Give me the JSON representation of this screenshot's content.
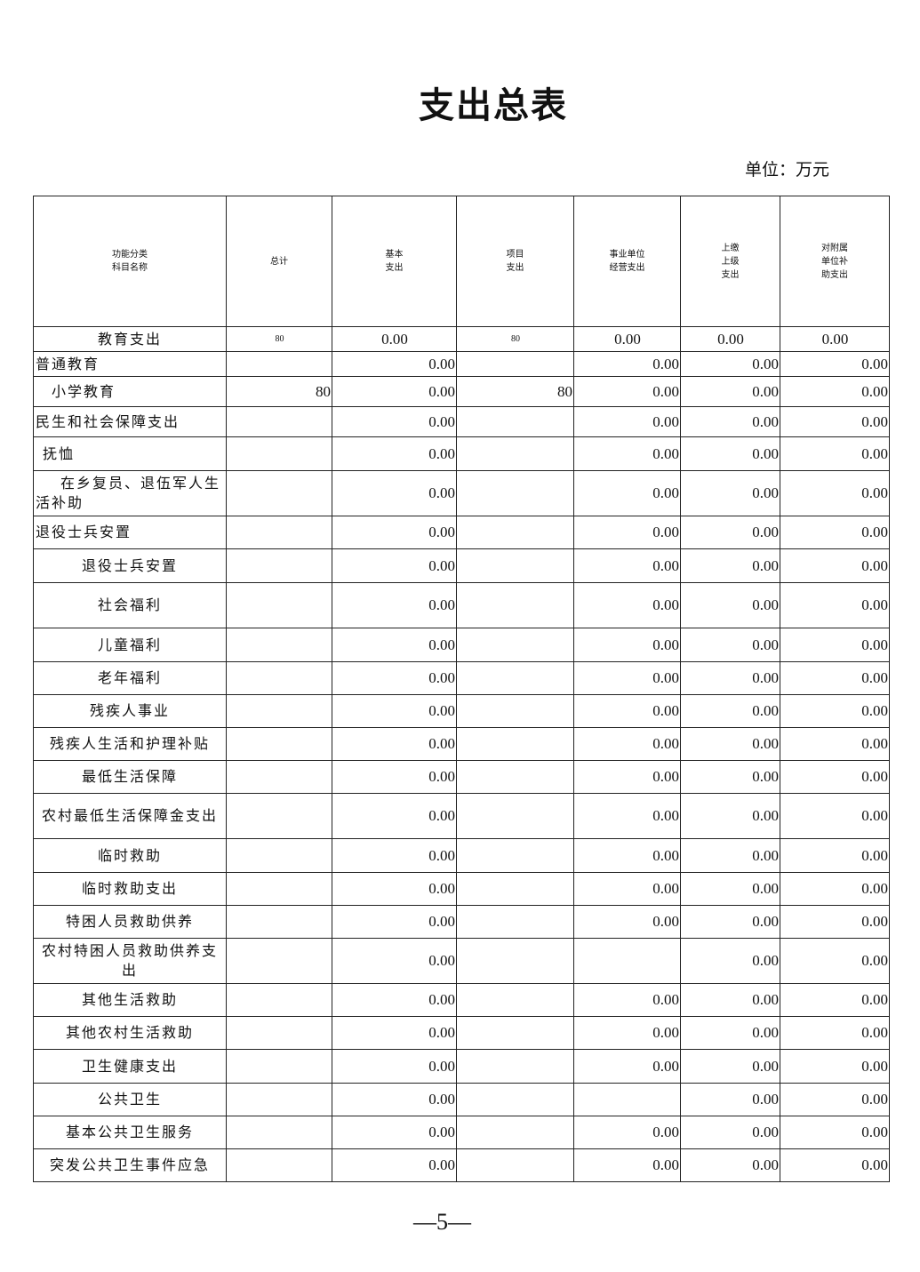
{
  "title": "支出总表",
  "unit": "单位：万元",
  "headers": [
    "功能分类\n科目名称",
    "总计",
    "基本\n支出",
    "项目\n支出",
    "事业单位\n经营支出",
    "上缴\n上级\n支出",
    "对附属\n单位补\n助支出"
  ],
  "rows": [
    {
      "name": "教育支出",
      "align": "center",
      "v": [
        "80",
        "0.00",
        "80",
        "0.00",
        "0.00",
        "0.00"
      ]
    },
    {
      "name": "普通教育",
      "align": "left",
      "v": [
        "",
        "0.00",
        "",
        "0.00",
        "0.00",
        "0.00"
      ]
    },
    {
      "name": "小学教育",
      "align": "indent",
      "v": [
        "80",
        "0.00",
        "80",
        "0.00",
        "0.00",
        "0.00"
      ]
    },
    {
      "name": "民生和社会保障支出",
      "align": "left",
      "v": [
        "",
        "0.00",
        "",
        "0.00",
        "0.00",
        "0.00"
      ]
    },
    {
      "name": "抚恤",
      "align": "indent1",
      "v": [
        "",
        "0.00",
        "",
        "0.00",
        "0.00",
        "0.00"
      ]
    },
    {
      "name": "在乡复员、退伍军人生活补助",
      "align": "wrap",
      "v": [
        "",
        "0.00",
        "",
        "0.00",
        "0.00",
        "0.00"
      ]
    },
    {
      "name": "退役士兵安置",
      "align": "left",
      "v": [
        "",
        "0.00",
        "",
        "0.00",
        "0.00",
        "0.00"
      ]
    },
    {
      "name": "退役士兵安置",
      "align": "center",
      "v": [
        "",
        "0.00",
        "",
        "0.00",
        "0.00",
        "0.00"
      ]
    },
    {
      "name": "社会福利",
      "align": "center",
      "v": [
        "",
        "0.00",
        "",
        "0.00",
        "0.00",
        "0.00"
      ]
    },
    {
      "name": "儿童福利",
      "align": "center",
      "v": [
        "",
        "0.00",
        "",
        "0.00",
        "0.00",
        "0.00"
      ]
    },
    {
      "name": "老年福利",
      "align": "center",
      "v": [
        "",
        "0.00",
        "",
        "0.00",
        "0.00",
        "0.00"
      ]
    },
    {
      "name": "残疾人事业",
      "align": "center",
      "v": [
        "",
        "0.00",
        "",
        "0.00",
        "0.00",
        "0.00"
      ]
    },
    {
      "name": "残疾人生活和护理补贴",
      "align": "center",
      "v": [
        "",
        "0.00",
        "",
        "0.00",
        "0.00",
        "0.00"
      ]
    },
    {
      "name": "最低生活保障",
      "align": "center",
      "v": [
        "",
        "0.00",
        "",
        "0.00",
        "0.00",
        "0.00"
      ]
    },
    {
      "name": "农村最低生活保障金支出",
      "align": "center",
      "v": [
        "",
        "0.00",
        "",
        "0.00",
        "0.00",
        "0.00"
      ]
    },
    {
      "name": "临时救助",
      "align": "center",
      "v": [
        "",
        "0.00",
        "",
        "0.00",
        "0.00",
        "0.00"
      ]
    },
    {
      "name": "临时救助支出",
      "align": "center",
      "v": [
        "",
        "0.00",
        "",
        "0.00",
        "0.00",
        "0.00"
      ]
    },
    {
      "name": "特困人员救助供养",
      "align": "center",
      "v": [
        "",
        "0.00",
        "",
        "0.00",
        "0.00",
        "0.00"
      ]
    },
    {
      "name": "农村特困人员救助供养支出",
      "align": "center",
      "v": [
        "",
        "0.00",
        "",
        "",
        "0.00",
        "0.00"
      ]
    },
    {
      "name": "其他生活救助",
      "align": "center",
      "v": [
        "",
        "0.00",
        "",
        "0.00",
        "0.00",
        "0.00"
      ]
    },
    {
      "name": "其他农村生活救助",
      "align": "center",
      "v": [
        "",
        "0.00",
        "",
        "0.00",
        "0.00",
        "0.00"
      ]
    },
    {
      "name": "卫生健康支出",
      "align": "center",
      "v": [
        "",
        "0.00",
        "",
        "0.00",
        "0.00",
        "0.00"
      ]
    },
    {
      "name": "公共卫生",
      "align": "center",
      "v": [
        "",
        "0.00",
        "",
        "",
        "0.00",
        "0.00"
      ]
    },
    {
      "name": "基本公共卫生服务",
      "align": "center",
      "v": [
        "",
        "0.00",
        "",
        "0.00",
        "0.00",
        "0.00"
      ]
    },
    {
      "name": "突发公共卫生事件应急",
      "align": "center",
      "v": [
        "",
        "0.00",
        "",
        "0.00",
        "0.00",
        "0.00"
      ]
    }
  ],
  "page_number": "—5—"
}
